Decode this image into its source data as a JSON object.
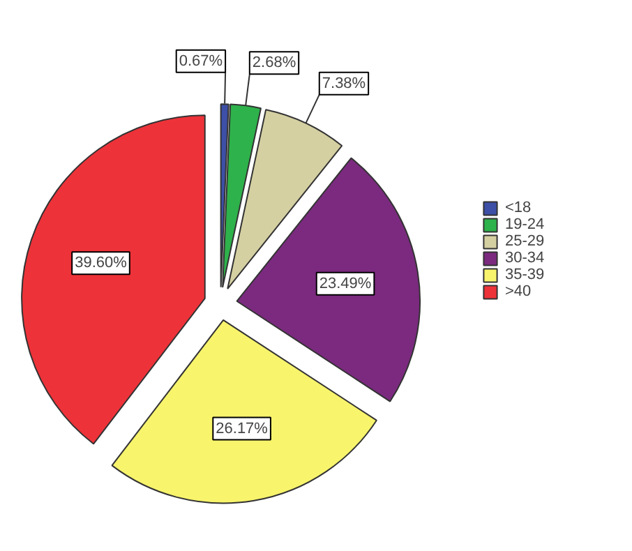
{
  "chart_data": {
    "type": "pie",
    "categories": [
      "<18",
      "19-24",
      "25-29",
      "30-34",
      "35-39",
      ">40"
    ],
    "values": [
      0.67,
      2.68,
      7.38,
      23.49,
      26.17,
      39.6
    ],
    "colors": [
      "#3d4fa6",
      "#2eb24b",
      "#d5d0a2",
      "#7b2a7f",
      "#f8f46c",
      "#ee3239"
    ],
    "value_labels": [
      "0.67%",
      "2.68%",
      "7.38%",
      "23.49%",
      "26.17%",
      "39.60%"
    ],
    "legend": "right"
  }
}
